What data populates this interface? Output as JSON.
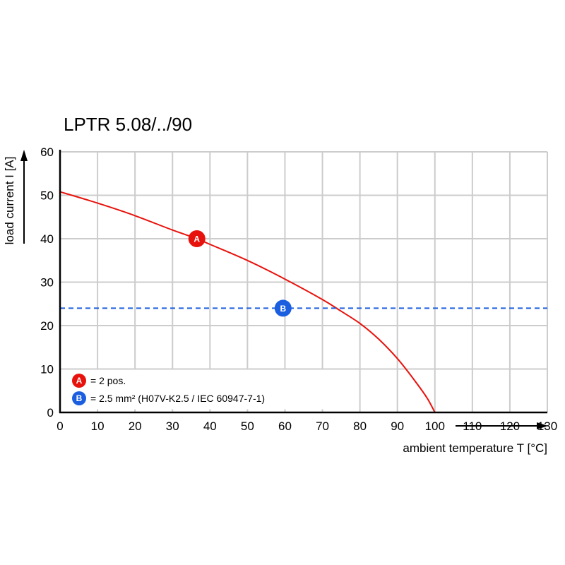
{
  "chart_data": {
    "type": "line",
    "title": "LPTR 5.08/../90",
    "xlabel": "ambient temperature T [°C]",
    "ylabel": "load current I [A]",
    "xlim": [
      0,
      130
    ],
    "ylim": [
      0,
      60
    ],
    "x_ticks": [
      "0",
      "10",
      "20",
      "30",
      "40",
      "50",
      "60",
      "70",
      "80",
      "90",
      "100",
      "110",
      "120",
      "130"
    ],
    "y_ticks": [
      "0",
      "10",
      "20",
      "30",
      "40",
      "50",
      "60"
    ],
    "grid": true,
    "series": [
      {
        "name": "A",
        "style": "solid",
        "color": "#e8120c",
        "x": [
          0,
          10,
          20,
          30,
          36.5,
          40,
          50,
          60,
          70,
          75,
          80,
          85,
          90,
          95,
          98,
          100
        ],
        "y": [
          50.8,
          48.2,
          45.3,
          42.0,
          40.0,
          38.7,
          35.0,
          30.7,
          26.0,
          23.3,
          20.5,
          16.9,
          12.4,
          6.9,
          3.2,
          0
        ]
      },
      {
        "name": "B",
        "style": "dashed",
        "color": "#1b5fe0",
        "x": [
          0,
          130
        ],
        "y": [
          24,
          24
        ]
      }
    ],
    "markers": [
      {
        "label": "A",
        "x": 36.5,
        "y": 40,
        "color": "#e8120c"
      },
      {
        "label": "B",
        "x": 59.5,
        "y": 24,
        "color": "#1b5fe0"
      }
    ],
    "legend": [
      {
        "label": "A",
        "text": "= 2 pos.",
        "color": "#e8120c"
      },
      {
        "label": "B",
        "text": "= 2.5 mm² (H07V-K2.5 / IEC 60947-7-1)",
        "color": "#1b5fe0"
      }
    ],
    "legend_position": "bottom-left"
  }
}
